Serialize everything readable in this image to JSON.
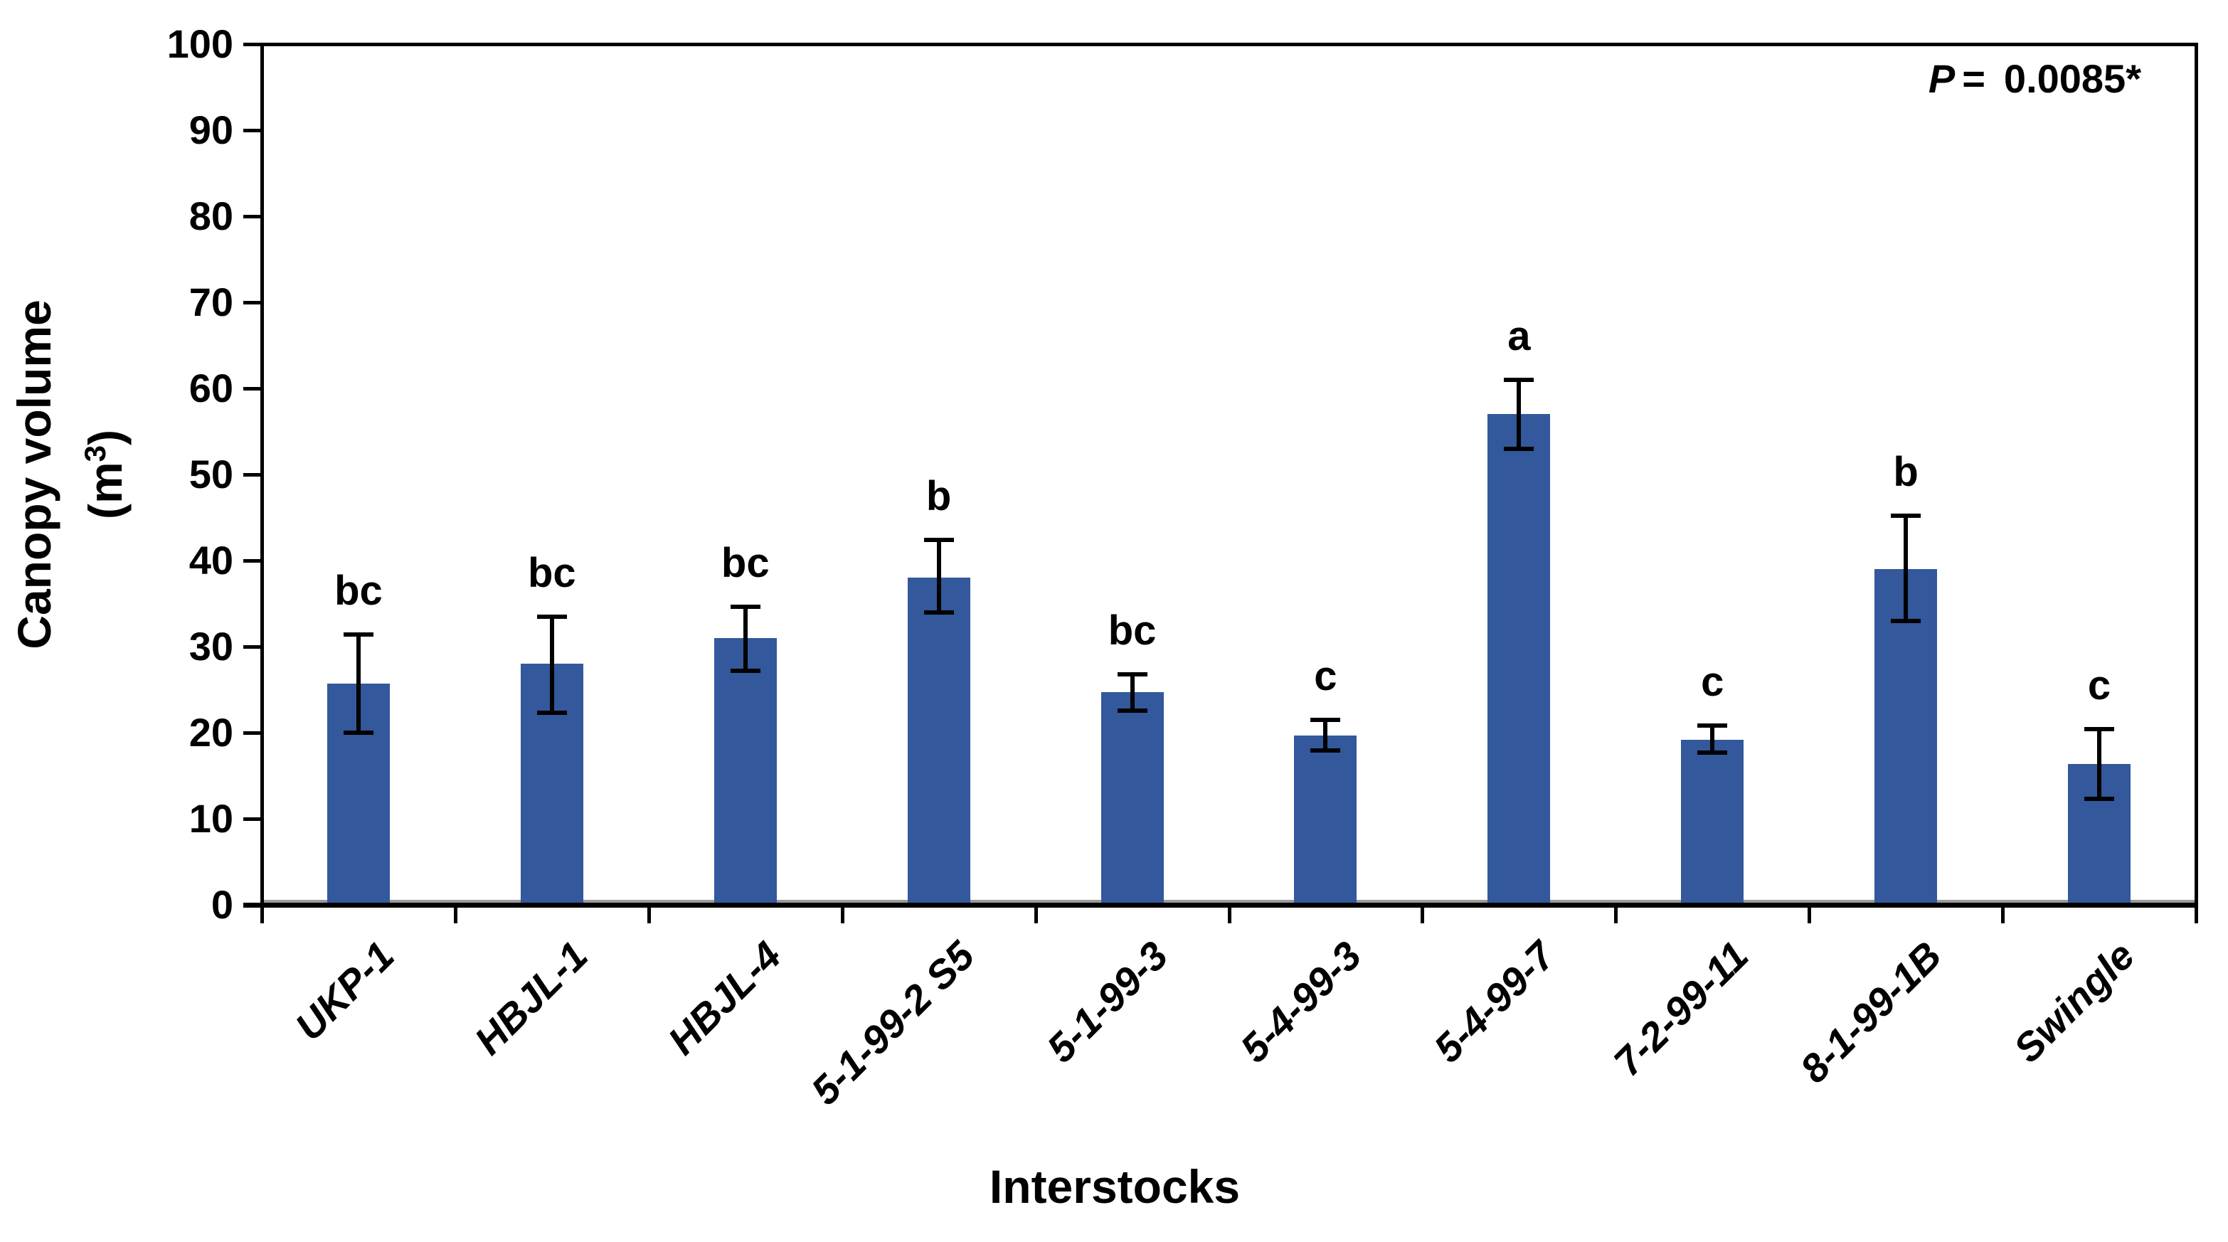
{
  "labels": {
    "y_title_line1": "Canopy volume",
    "y_title_m": "(m",
    "y_title_sup": "3",
    "y_title_close": ")",
    "x_title": "Interstocks",
    "p_symbol": "P",
    "p_equals": "=",
    "p_value": "0.0085*"
  },
  "chart_data": {
    "type": "bar",
    "title": "",
    "xlabel": "Interstocks",
    "ylabel": "Canopy volume (m3)",
    "ylim": [
      0,
      100
    ],
    "y_ticks": [
      0,
      10,
      20,
      30,
      40,
      50,
      60,
      70,
      80,
      90,
      100
    ],
    "grid": false,
    "legend_position": "none",
    "bar_color": "#33589B",
    "axis_color": "#000000",
    "annotation": "P =  0.0085*",
    "categories": [
      "UKP-1",
      "HBJL-1",
      "HBJL-4",
      "5-1-99-2 S5",
      "5-1-99-3",
      "5-4-99-3",
      "5-4-99-7",
      "7-2-99-11",
      "8-1-99-1B",
      "Swingle"
    ],
    "values": [
      25.7,
      28.0,
      31.0,
      38.0,
      24.7,
      19.7,
      57.0,
      19.2,
      39.0,
      16.4
    ],
    "error_low": [
      20.0,
      22.3,
      27.2,
      34.0,
      22.6,
      17.9,
      53.0,
      17.7,
      33.0,
      12.3
    ],
    "error_high": [
      31.4,
      33.5,
      34.6,
      42.4,
      26.8,
      21.5,
      61.0,
      20.8,
      45.2,
      20.4
    ],
    "sig_letters": [
      "bc",
      "bc",
      "bc",
      "b",
      "bc",
      "c",
      "a",
      "c",
      "b",
      "c"
    ]
  }
}
